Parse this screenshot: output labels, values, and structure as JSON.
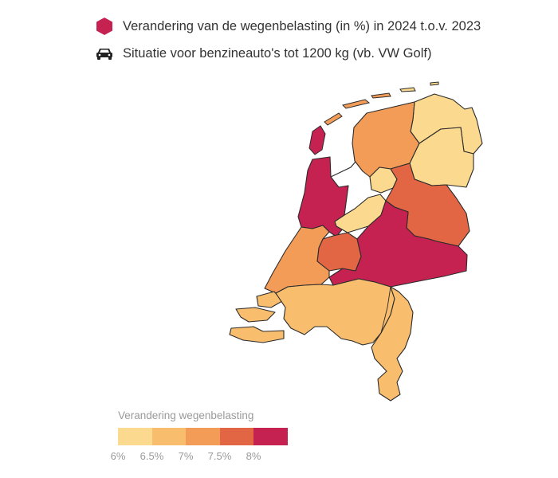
{
  "header": {
    "line1": {
      "icon": "hexagon-icon",
      "icon_color": "#c52252",
      "text": "Verandering van de wegenbelasting (in %) in 2024 t.o.v. 2023"
    },
    "line2": {
      "icon": "car-icon",
      "icon_color": "#222222",
      "text": "Situatie voor benzineauto's tot 1200 kg (vb. VW Golf)"
    }
  },
  "legend": {
    "title": "Verandering wegenbelasting",
    "colors": [
      "#fbd98f",
      "#f9bd6e",
      "#f39c57",
      "#e26644",
      "#c52252"
    ],
    "ticks": [
      "6%",
      "6.5%",
      "7%",
      "7.5%",
      "8%"
    ]
  },
  "map_data": {
    "regions": [
      {
        "name": "Groningen",
        "bin": 0
      },
      {
        "name": "Friesland",
        "bin": 2
      },
      {
        "name": "Drenthe",
        "bin": 0
      },
      {
        "name": "Noord-Holland",
        "bin": 4
      },
      {
        "name": "Flevoland",
        "bin": 0
      },
      {
        "name": "Overijssel",
        "bin": 3
      },
      {
        "name": "Gelderland",
        "bin": 4
      },
      {
        "name": "Utrecht",
        "bin": 3
      },
      {
        "name": "Zuid-Holland",
        "bin": 2
      },
      {
        "name": "Zeeland",
        "bin": 1
      },
      {
        "name": "Noord-Brabant",
        "bin": 1
      },
      {
        "name": "Limburg",
        "bin": 1
      }
    ]
  }
}
